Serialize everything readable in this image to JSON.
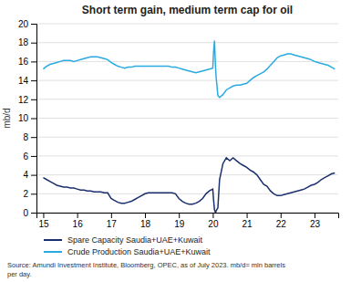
{
  "chart_data": {
    "type": "line",
    "title": "Short term gain, medium term cap for oil",
    "y_label": "mb/d",
    "source": "Source: Amundi Investment Institute, Bloomberg, OPEC, as of July 2023. mb/d= mln barrels\nper day.",
    "x": [
      15.0,
      15.1,
      15.2,
      15.3,
      15.4,
      15.5,
      15.6,
      15.7,
      15.8,
      15.9,
      16.0,
      16.1,
      16.2,
      16.3,
      16.4,
      16.5,
      16.6,
      16.7,
      16.8,
      16.9,
      17.0,
      17.1,
      17.2,
      17.3,
      17.4,
      17.5,
      17.6,
      17.7,
      17.8,
      17.9,
      18.0,
      18.1,
      18.2,
      18.3,
      18.4,
      18.5,
      18.6,
      18.7,
      18.8,
      18.9,
      19.0,
      19.1,
      19.2,
      19.3,
      19.4,
      19.5,
      19.6,
      19.7,
      19.8,
      19.9,
      20.0,
      20.02,
      20.05,
      20.08,
      20.1,
      20.15,
      20.2,
      20.3,
      20.4,
      20.5,
      20.6,
      20.7,
      20.8,
      20.9,
      21.0,
      21.1,
      21.2,
      21.3,
      21.4,
      21.5,
      21.6,
      21.7,
      21.8,
      21.9,
      22.0,
      22.1,
      22.2,
      22.3,
      22.4,
      22.5,
      22.6,
      22.7,
      22.8,
      22.9,
      23.0,
      23.1,
      23.2,
      23.3,
      23.4,
      23.5,
      23.6
    ],
    "series": [
      {
        "name": "Spare Capacity Saudia+UAE+Kuwait",
        "color": "#1a2f6e",
        "values": [
          3.7,
          3.5,
          3.3,
          3.1,
          2.9,
          2.8,
          2.7,
          2.7,
          2.6,
          2.6,
          2.5,
          2.4,
          2.4,
          2.3,
          2.3,
          2.2,
          2.2,
          2.2,
          2.1,
          2.1,
          1.5,
          1.3,
          1.1,
          1.0,
          1.0,
          1.1,
          1.2,
          1.4,
          1.6,
          1.8,
          2.0,
          2.1,
          2.1,
          2.1,
          2.1,
          2.1,
          2.1,
          2.1,
          2.1,
          2.0,
          1.5,
          1.2,
          1.0,
          0.9,
          0.9,
          1.0,
          1.2,
          1.5,
          2.0,
          2.3,
          2.5,
          1.5,
          0.3,
          0.0,
          0.2,
          0.5,
          3.5,
          5.2,
          5.8,
          5.5,
          5.8,
          5.5,
          5.2,
          5.0,
          4.8,
          4.5,
          4.3,
          4.0,
          3.5,
          3.0,
          2.8,
          2.3,
          2.0,
          1.8,
          1.8,
          1.9,
          2.0,
          2.1,
          2.2,
          2.3,
          2.4,
          2.5,
          2.7,
          2.9,
          3.0,
          3.2,
          3.5,
          3.7,
          3.9,
          4.1,
          4.2
        ]
      },
      {
        "name": "Crude Production Saudia+UAE+Kuwait",
        "color": "#29abe2",
        "values": [
          15.2,
          15.5,
          15.7,
          15.8,
          15.9,
          16.0,
          16.1,
          16.1,
          16.1,
          16.0,
          16.1,
          16.2,
          16.3,
          16.4,
          16.5,
          16.5,
          16.5,
          16.4,
          16.3,
          16.2,
          15.9,
          15.7,
          15.5,
          15.4,
          15.3,
          15.4,
          15.4,
          15.5,
          15.5,
          15.5,
          15.5,
          15.5,
          15.5,
          15.5,
          15.5,
          15.5,
          15.5,
          15.5,
          15.4,
          15.4,
          15.3,
          15.2,
          15.1,
          15.0,
          14.9,
          14.8,
          14.9,
          15.0,
          15.1,
          15.2,
          15.3,
          16.8,
          18.2,
          15.5,
          14.3,
          12.4,
          12.2,
          12.5,
          13.0,
          13.2,
          13.4,
          13.5,
          13.5,
          13.6,
          13.7,
          14.0,
          14.3,
          14.5,
          14.7,
          14.9,
          15.2,
          15.6,
          16.0,
          16.4,
          16.6,
          16.7,
          16.8,
          16.8,
          16.7,
          16.6,
          16.5,
          16.4,
          16.3,
          16.2,
          16.0,
          15.9,
          15.8,
          15.7,
          15.6,
          15.4,
          15.2
        ]
      }
    ],
    "xlim": [
      14.8,
      23.7
    ],
    "xticks": [
      15,
      16,
      17,
      18,
      19,
      20,
      21,
      22,
      23
    ],
    "ylim": [
      0,
      20
    ],
    "yticks": [
      0,
      2,
      4,
      6,
      8,
      10,
      12,
      14,
      16,
      18,
      20
    ],
    "grid": "y",
    "legend": "bottom"
  }
}
